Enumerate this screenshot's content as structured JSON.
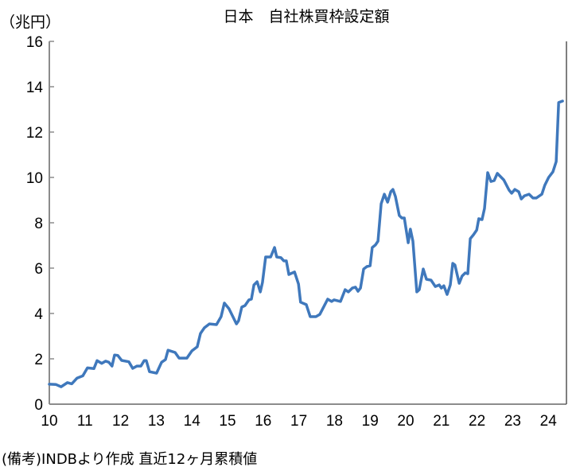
{
  "chart_data": {
    "type": "line",
    "title": "日本　自社株買枠設定額",
    "ylabel": "（兆円）",
    "xlabel": "",
    "note": "(備考)INDBより作成 直近12ヶ月累積値",
    "xlim": [
      10,
      24.6
    ],
    "ylim": [
      0,
      16
    ],
    "x_ticks": [
      10,
      11,
      12,
      13,
      14,
      15,
      16,
      17,
      18,
      19,
      20,
      21,
      22,
      23,
      24
    ],
    "x_tick_labels": [
      "10",
      "11",
      "12",
      "13",
      "14",
      "15",
      "16",
      "17",
      "18",
      "19",
      "20",
      "21",
      "22",
      "23",
      "24"
    ],
    "y_ticks": [
      0,
      2,
      4,
      6,
      8,
      10,
      12,
      14,
      16
    ],
    "y_tick_labels": [
      "0",
      "2",
      "4",
      "6",
      "8",
      "10",
      "12",
      "14",
      "16"
    ],
    "grid": false,
    "series": [
      {
        "name": "自社株買枠設定額",
        "color": "#3f78bc",
        "points": [
          [
            10.0,
            0.88
          ],
          [
            10.18,
            0.87
          ],
          [
            10.33,
            0.77
          ],
          [
            10.51,
            0.95
          ],
          [
            10.63,
            0.9
          ],
          [
            10.78,
            1.15
          ],
          [
            10.94,
            1.25
          ],
          [
            11.07,
            1.6
          ],
          [
            11.25,
            1.57
          ],
          [
            11.34,
            1.92
          ],
          [
            11.47,
            1.8
          ],
          [
            11.58,
            1.9
          ],
          [
            11.67,
            1.85
          ],
          [
            11.76,
            1.68
          ],
          [
            11.83,
            2.17
          ],
          [
            11.92,
            2.15
          ],
          [
            12.03,
            1.93
          ],
          [
            12.23,
            1.87
          ],
          [
            12.34,
            1.58
          ],
          [
            12.46,
            1.68
          ],
          [
            12.57,
            1.68
          ],
          [
            12.66,
            1.92
          ],
          [
            12.72,
            1.92
          ],
          [
            12.81,
            1.43
          ],
          [
            13.01,
            1.37
          ],
          [
            13.15,
            1.85
          ],
          [
            13.26,
            1.97
          ],
          [
            13.33,
            2.38
          ],
          [
            13.53,
            2.28
          ],
          [
            13.64,
            2.03
          ],
          [
            13.86,
            2.03
          ],
          [
            14.0,
            2.35
          ],
          [
            14.15,
            2.53
          ],
          [
            14.24,
            3.12
          ],
          [
            14.35,
            3.37
          ],
          [
            14.49,
            3.54
          ],
          [
            14.69,
            3.51
          ],
          [
            14.82,
            3.86
          ],
          [
            14.91,
            4.46
          ],
          [
            15.04,
            4.21
          ],
          [
            15.25,
            3.54
          ],
          [
            15.31,
            3.68
          ],
          [
            15.4,
            4.28
          ],
          [
            15.49,
            4.35
          ],
          [
            15.6,
            4.6
          ],
          [
            15.67,
            4.63
          ],
          [
            15.74,
            5.26
          ],
          [
            15.83,
            5.4
          ],
          [
            15.92,
            4.95
          ],
          [
            15.98,
            5.37
          ],
          [
            16.07,
            6.49
          ],
          [
            16.21,
            6.49
          ],
          [
            16.32,
            6.91
          ],
          [
            16.38,
            6.49
          ],
          [
            16.5,
            6.46
          ],
          [
            16.58,
            6.32
          ],
          [
            16.65,
            6.32
          ],
          [
            16.72,
            5.72
          ],
          [
            16.88,
            5.83
          ],
          [
            16.99,
            5.3
          ],
          [
            17.05,
            4.5
          ],
          [
            17.21,
            4.39
          ],
          [
            17.32,
            3.86
          ],
          [
            17.48,
            3.86
          ],
          [
            17.59,
            3.96
          ],
          [
            17.81,
            4.63
          ],
          [
            17.92,
            4.53
          ],
          [
            17.99,
            4.6
          ],
          [
            18.17,
            4.53
          ],
          [
            18.3,
            5.05
          ],
          [
            18.39,
            4.95
          ],
          [
            18.5,
            5.12
          ],
          [
            18.59,
            5.16
          ],
          [
            18.66,
            4.98
          ],
          [
            18.73,
            5.12
          ],
          [
            18.82,
            5.96
          ],
          [
            18.91,
            6.07
          ],
          [
            19.0,
            6.1
          ],
          [
            19.06,
            6.91
          ],
          [
            19.15,
            7.02
          ],
          [
            19.22,
            7.19
          ],
          [
            19.31,
            8.84
          ],
          [
            19.4,
            9.26
          ],
          [
            19.49,
            8.91
          ],
          [
            19.58,
            9.37
          ],
          [
            19.64,
            9.47
          ],
          [
            19.71,
            9.16
          ],
          [
            19.82,
            8.32
          ],
          [
            19.89,
            8.21
          ],
          [
            19.96,
            8.21
          ],
          [
            20.07,
            7.12
          ],
          [
            20.13,
            7.72
          ],
          [
            20.2,
            7.19
          ],
          [
            20.31,
            4.95
          ],
          [
            20.38,
            5.05
          ],
          [
            20.49,
            5.96
          ],
          [
            20.58,
            5.51
          ],
          [
            20.71,
            5.47
          ],
          [
            20.83,
            5.19
          ],
          [
            20.94,
            5.26
          ],
          [
            21.0,
            5.12
          ],
          [
            21.07,
            5.22
          ],
          [
            21.16,
            4.84
          ],
          [
            21.25,
            5.26
          ],
          [
            21.32,
            6.21
          ],
          [
            21.38,
            6.14
          ],
          [
            21.5,
            5.33
          ],
          [
            21.58,
            5.65
          ],
          [
            21.67,
            5.79
          ],
          [
            21.74,
            5.75
          ],
          [
            21.81,
            7.3
          ],
          [
            21.9,
            7.47
          ],
          [
            21.99,
            7.68
          ],
          [
            22.05,
            8.18
          ],
          [
            22.14,
            8.14
          ],
          [
            22.21,
            8.63
          ],
          [
            22.3,
            10.21
          ],
          [
            22.39,
            9.82
          ],
          [
            22.48,
            9.86
          ],
          [
            22.57,
            10.18
          ],
          [
            22.75,
            9.89
          ],
          [
            22.9,
            9.44
          ],
          [
            22.97,
            9.3
          ],
          [
            23.06,
            9.47
          ],
          [
            23.17,
            9.37
          ],
          [
            23.24,
            9.05
          ],
          [
            23.33,
            9.19
          ],
          [
            23.46,
            9.26
          ],
          [
            23.57,
            9.09
          ],
          [
            23.66,
            9.09
          ],
          [
            23.82,
            9.26
          ],
          [
            23.9,
            9.65
          ],
          [
            24.01,
            10.0
          ],
          [
            24.13,
            10.25
          ],
          [
            24.22,
            10.7
          ],
          [
            24.29,
            13.3
          ],
          [
            24.4,
            13.37
          ]
        ]
      }
    ]
  }
}
